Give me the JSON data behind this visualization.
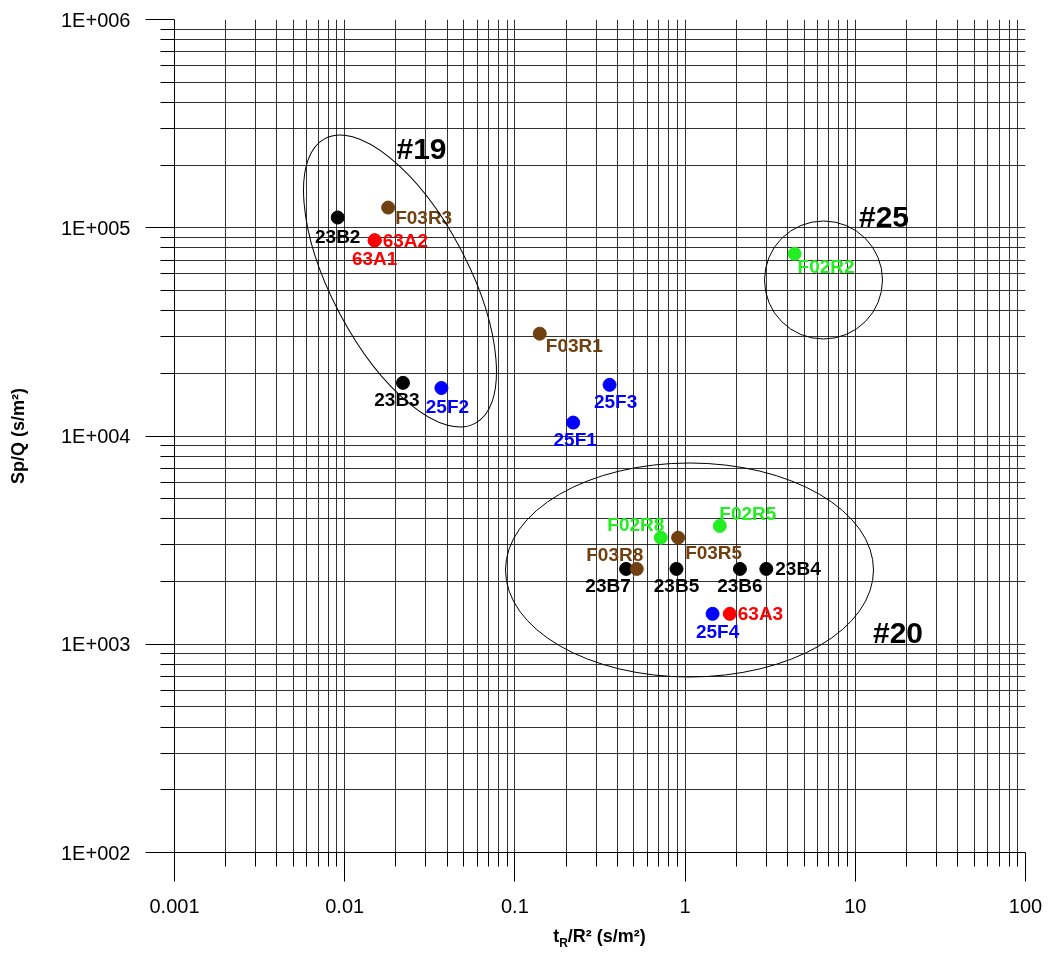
{
  "chart_data": {
    "type": "scatter",
    "xlabel": "t$_{R}$/R² (s/m²)",
    "ylabel": "Sp/Q (s/m²)",
    "log": "xy",
    "grid": true,
    "marker": "circle",
    "xlim": [
      0.001,
      100
    ],
    "ylim": [
      100,
      1000000
    ],
    "xticks": [
      0.001,
      0.01,
      0.1,
      1,
      10,
      100
    ],
    "yticks": [
      {
        "value": 100,
        "label": "1E+002"
      },
      {
        "value": 1000,
        "label": "1E+003"
      },
      {
        "value": 10000,
        "label": "1E+004"
      },
      {
        "value": 100000,
        "label": "1E+005"
      },
      {
        "value": 1000000,
        "label": "1E+006"
      }
    ],
    "series": [
      {
        "color": "#000000",
        "x": [
          0.0091,
          0.022,
          0.45,
          0.89,
          2.1,
          3.0
        ],
        "values": [
          112000,
          18000,
          2300,
          2300,
          2300,
          2300
        ]
      },
      {
        "color": "#704010",
        "x": [
          0.018,
          0.14,
          0.52,
          0.91
        ],
        "values": [
          125000,
          31000,
          2300,
          3250
        ]
      },
      {
        "color": "#ff0000",
        "x": [
          0.015,
          0.015,
          1.83
        ],
        "values": [
          87000,
          87000,
          1400
        ]
      },
      {
        "color": "#0000ff",
        "x": [
          0.037,
          0.22,
          0.36,
          1.45
        ],
        "values": [
          17000,
          11600,
          17600,
          1400
        ]
      },
      {
        "color": "#22ee22",
        "x": [
          4.4,
          0.72,
          1.6
        ],
        "values": [
          75000,
          3250,
          3700
        ]
      }
    ],
    "annotations": [
      {
        "text": "23B2",
        "x": 0.0091,
        "y": 112000
      },
      {
        "text": "23B3",
        "x": 0.022,
        "y": 18000
      },
      {
        "text": "23B7",
        "x": 0.45,
        "y": 2300
      },
      {
        "text": "23B5",
        "x": 0.89,
        "y": 2300
      },
      {
        "text": "23B6",
        "x": 2.1,
        "y": 2300
      },
      {
        "text": "23B4",
        "x": 3.0,
        "y": 2300
      },
      {
        "text": "F03R3",
        "x": 0.018,
        "y": 125000
      },
      {
        "text": "F03R1",
        "x": 0.14,
        "y": 31000
      },
      {
        "text": "F03R8",
        "x": 0.52,
        "y": 2300
      },
      {
        "text": "F03R5",
        "x": 0.91,
        "y": 3250
      },
      {
        "text": "63A1",
        "x": 0.015,
        "y": 87000
      },
      {
        "text": "63A2",
        "x": 0.015,
        "y": 87000
      },
      {
        "text": "63A3",
        "x": 1.83,
        "y": 1400
      },
      {
        "text": "25F2",
        "x": 0.037,
        "y": 17000
      },
      {
        "text": "25F1",
        "x": 0.22,
        "y": 11600
      },
      {
        "text": "25F3",
        "x": 0.36,
        "y": 17600
      },
      {
        "text": "25F4",
        "x": 1.45,
        "y": 1400
      },
      {
        "text": "F02R2",
        "x": 4.4,
        "y": 75000
      },
      {
        "text": "F02R8",
        "x": 0.72,
        "y": 3250
      },
      {
        "text": "F02R5",
        "x": 1.6,
        "y": 3700
      },
      "#19",
      "#25",
      "#20"
    ]
  }
}
